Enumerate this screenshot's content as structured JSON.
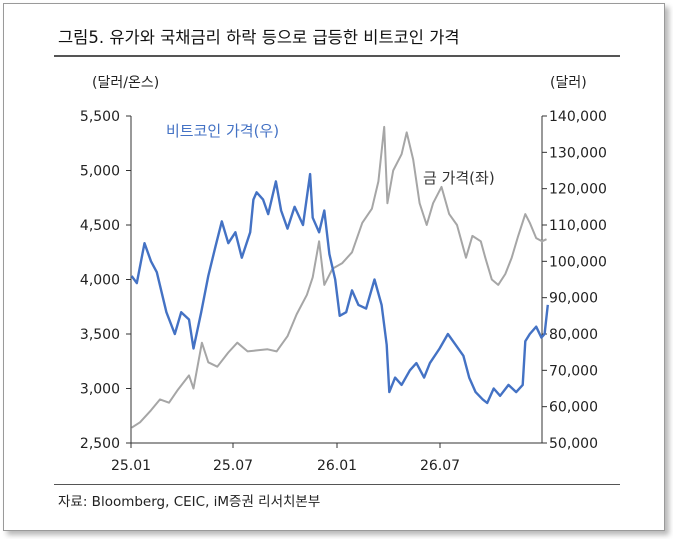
{
  "header": {
    "title": "그림5.  유가와 국채금리 하락 등으로 급등한 비트코인 가격"
  },
  "source": "자료: Bloomberg, CEIC, iM증권 리서치본부",
  "colors": {
    "bitcoin": "#4472C4",
    "gold": "#A6A6A6",
    "axis": "#333333"
  },
  "chart_data": {
    "type": "line",
    "y_left_unit": "(달러/온스)",
    "y_right_unit": "(달러)",
    "ylim_left": [
      2500,
      5500
    ],
    "ylim_right": [
      50000,
      140000
    ],
    "yticks_left": [
      "5,500",
      "5,000",
      "4,500",
      "4,000",
      "3,500",
      "3,000",
      "2,500"
    ],
    "yticks_right": [
      "140,000",
      "130,000",
      "120,000",
      "110,000",
      "100,000",
      "90,000",
      "80,000",
      "70,000",
      "60,000",
      "50,000"
    ],
    "xticks": [
      "25.01",
      "25.07",
      "26.01",
      "26.07"
    ],
    "series": [
      {
        "name": "금 가격(좌)",
        "axis": "left",
        "color": "#A6A6A6",
        "points": [
          [
            "2025-01-02",
            2640
          ],
          [
            "2025-01-15",
            2690
          ],
          [
            "2025-02-01",
            2800
          ],
          [
            "2025-02-15",
            2900
          ],
          [
            "2025-03-01",
            2870
          ],
          [
            "2025-03-15",
            2990
          ],
          [
            "2025-04-01",
            3120
          ],
          [
            "2025-04-08",
            3000
          ],
          [
            "2025-04-21",
            3420
          ],
          [
            "2025-05-01",
            3240
          ],
          [
            "2025-05-15",
            3200
          ],
          [
            "2025-06-01",
            3330
          ],
          [
            "2025-06-15",
            3420
          ],
          [
            "2025-07-01",
            3340
          ],
          [
            "2025-07-15",
            3350
          ],
          [
            "2025-08-01",
            3360
          ],
          [
            "2025-08-15",
            3340
          ],
          [
            "2025-09-01",
            3480
          ],
          [
            "2025-09-15",
            3680
          ],
          [
            "2025-10-01",
            3860
          ],
          [
            "2025-10-10",
            4020
          ],
          [
            "2025-10-20",
            4350
          ],
          [
            "2025-10-28",
            3950
          ],
          [
            "2025-11-10",
            4100
          ],
          [
            "2025-11-25",
            4150
          ],
          [
            "2025-12-10",
            4250
          ],
          [
            "2025-12-26",
            4520
          ],
          [
            "2026-01-10",
            4650
          ],
          [
            "2026-01-20",
            4900
          ],
          [
            "2026-01-29",
            5400
          ],
          [
            "2026-02-03",
            4700
          ],
          [
            "2026-02-12",
            5000
          ],
          [
            "2026-02-25",
            5150
          ],
          [
            "2026-03-05",
            5350
          ],
          [
            "2026-03-15",
            5100
          ],
          [
            "2026-03-25",
            4700
          ],
          [
            "2026-04-05",
            4500
          ],
          [
            "2026-04-15",
            4700
          ],
          [
            "2026-04-28",
            4850
          ],
          [
            "2026-05-10",
            4600
          ],
          [
            "2026-05-22",
            4500
          ],
          [
            "2026-06-05",
            4200
          ],
          [
            "2026-06-15",
            4400
          ],
          [
            "2026-06-28",
            4350
          ],
          [
            "2026-07-05",
            4200
          ],
          [
            "2026-07-15",
            4000
          ],
          [
            "2026-07-25",
            3950
          ],
          [
            "2026-08-05",
            4050
          ],
          [
            "2026-08-15",
            4200
          ],
          [
            "2026-08-25",
            4400
          ],
          [
            "2026-09-05",
            4600
          ],
          [
            "2026-09-12",
            4520
          ],
          [
            "2026-09-22",
            4380
          ],
          [
            "2026-10-01",
            4350
          ],
          [
            "2026-10-08",
            4370
          ]
        ]
      },
      {
        "name": "비트코인 가격(우)",
        "axis": "right",
        "color": "#4472C4",
        "points": [
          [
            "2025-01-02",
            96000
          ],
          [
            "2025-01-10",
            94000
          ],
          [
            "2025-01-22",
            105000
          ],
          [
            "2025-02-01",
            100000
          ],
          [
            "2025-02-10",
            97000
          ],
          [
            "2025-02-25",
            86000
          ],
          [
            "2025-03-10",
            80000
          ],
          [
            "2025-03-20",
            86000
          ],
          [
            "2025-04-01",
            84000
          ],
          [
            "2025-04-08",
            76000
          ],
          [
            "2025-04-20",
            86000
          ],
          [
            "2025-05-01",
            96000
          ],
          [
            "2025-05-12",
            104000
          ],
          [
            "2025-05-22",
            111000
          ],
          [
            "2025-06-01",
            105000
          ],
          [
            "2025-06-12",
            108000
          ],
          [
            "2025-06-22",
            101000
          ],
          [
            "2025-07-05",
            108000
          ],
          [
            "2025-07-10",
            117000
          ],
          [
            "2025-07-15",
            119000
          ],
          [
            "2025-07-25",
            117000
          ],
          [
            "2025-08-02",
            113000
          ],
          [
            "2025-08-14",
            122000
          ],
          [
            "2025-08-22",
            114000
          ],
          [
            "2025-09-01",
            109000
          ],
          [
            "2025-09-12",
            115000
          ],
          [
            "2025-09-25",
            110000
          ],
          [
            "2025-10-06",
            124000
          ],
          [
            "2025-10-10",
            112000
          ],
          [
            "2025-10-20",
            108000
          ],
          [
            "2025-10-28",
            114000
          ],
          [
            "2025-11-05",
            102000
          ],
          [
            "2025-11-14",
            95000
          ],
          [
            "2025-11-21",
            85000
          ],
          [
            "2025-12-01",
            86000
          ],
          [
            "2025-12-10",
            92000
          ],
          [
            "2025-12-20",
            88000
          ],
          [
            "2026-01-01",
            87000
          ],
          [
            "2026-01-14",
            95000
          ],
          [
            "2026-01-25",
            88000
          ],
          [
            "2026-02-02",
            77000
          ],
          [
            "2026-02-06",
            64000
          ],
          [
            "2026-02-15",
            68000
          ],
          [
            "2026-02-25",
            66000
          ],
          [
            "2026-03-10",
            70000
          ],
          [
            "2026-03-20",
            72000
          ],
          [
            "2026-04-01",
            68000
          ],
          [
            "2026-04-10",
            72000
          ],
          [
            "2026-04-25",
            76000
          ],
          [
            "2026-05-08",
            80000
          ],
          [
            "2026-05-20",
            77000
          ],
          [
            "2026-06-01",
            74000
          ],
          [
            "2026-06-10",
            68000
          ],
          [
            "2026-06-20",
            64000
          ],
          [
            "2026-07-01",
            62000
          ],
          [
            "2026-07-08",
            61000
          ],
          [
            "2026-07-18",
            65000
          ],
          [
            "2026-07-28",
            63000
          ],
          [
            "2026-08-10",
            66000
          ],
          [
            "2026-08-22",
            64000
          ],
          [
            "2026-09-01",
            66000
          ],
          [
            "2026-09-05",
            78000
          ],
          [
            "2026-09-12",
            80000
          ],
          [
            "2026-09-22",
            82000
          ],
          [
            "2026-09-30",
            79000
          ],
          [
            "2026-10-05",
            80000
          ],
          [
            "2026-10-10",
            88000
          ]
        ]
      }
    ]
  }
}
